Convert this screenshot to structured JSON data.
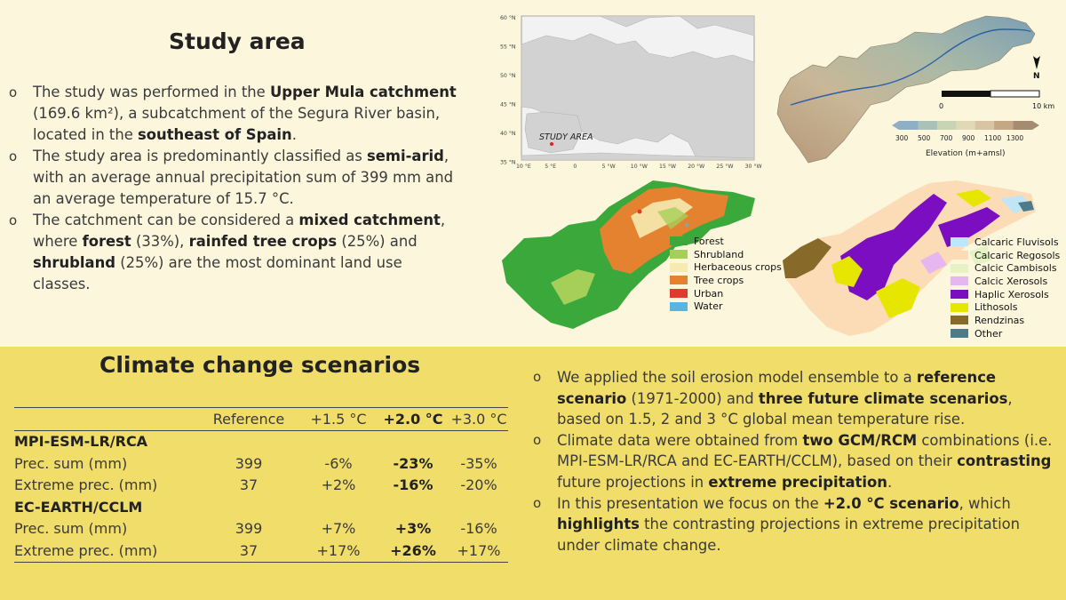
{
  "study_area": {
    "title": "Study area",
    "bullets": [
      [
        {
          "t": "The study was performed in the "
        },
        {
          "t": "Upper Mula catchment",
          "b": true
        },
        {
          "t": " (169.6 km²), a subcatchment of the Segura River basin, located in the "
        },
        {
          "t": "southeast of Spain",
          "b": true
        },
        {
          "t": "."
        }
      ],
      [
        {
          "t": "The study area is predominantly classified as "
        },
        {
          "t": "semi-arid",
          "b": true
        },
        {
          "t": ", with an average annual precipitation sum of 399 mm and an average temperature of 15.7 °C."
        }
      ],
      [
        {
          "t": "The catchment can be considered a "
        },
        {
          "t": "mixed catchment",
          "b": true
        },
        {
          "t": ", where "
        },
        {
          "t": "forest",
          "b": true
        },
        {
          "t": " (33%), "
        },
        {
          "t": "rainfed tree crops",
          "b": true
        },
        {
          "t": " (25%) and "
        },
        {
          "t": "shrubland",
          "b": true
        },
        {
          "t": " (25%) are the most dominant land use classes."
        }
      ]
    ]
  },
  "climate": {
    "title": "Climate change scenarios",
    "bullets": [
      [
        {
          "t": "We applied the soil erosion model ensemble to a "
        },
        {
          "t": "reference scenario",
          "b": true
        },
        {
          "t": " (1971-2000) and "
        },
        {
          "t": "three future climate scenarios",
          "b": true
        },
        {
          "t": ", based on 1.5, 2 and 3 °C global mean temperature rise."
        }
      ],
      [
        {
          "t": "Climate data were obtained from "
        },
        {
          "t": "two GCM/RCM",
          "b": true
        },
        {
          "t": " combinations (i.e. MPI-ESM-LR/RCA and EC-EARTH/CCLM), based on their "
        },
        {
          "t": "contrasting",
          "b": true
        },
        {
          "t": " future projections in "
        },
        {
          "t": "extreme precipitation",
          "b": true
        },
        {
          "t": "."
        }
      ],
      [
        {
          "t": "In this presentation we focus on the "
        },
        {
          "t": "+2.0 °C scenario",
          "b": true
        },
        {
          "t": ", which "
        },
        {
          "t": "highlights",
          "b": true
        },
        {
          "t": " the contrasting projections in extreme precipitation under climate change."
        }
      ]
    ]
  },
  "table": {
    "headers": [
      "",
      "Reference",
      "+1.5 °C",
      "+2.0 °C",
      "+3.0 °C"
    ],
    "groups": [
      {
        "name": "MPI-ESM-LR/RCA",
        "rows": [
          [
            "Prec. sum (mm)",
            "399",
            "-6%",
            "-23%",
            "-35%"
          ],
          [
            "Extreme prec. (mm)",
            "37",
            "+2%",
            "-16%",
            "-20%"
          ]
        ]
      },
      {
        "name": "EC-EARTH/CCLM",
        "rows": [
          [
            "Prec. sum (mm)",
            "399",
            "+7%",
            "+3%",
            "-16%"
          ],
          [
            "Extreme prec. (mm)",
            "37",
            "+17%",
            "+26%",
            "+17%"
          ]
        ]
      }
    ]
  },
  "europe_map": {
    "lat_labels": [
      "60 °N",
      "55 °N",
      "50 °N",
      "45 °N",
      "40 °N",
      "35 °N"
    ],
    "lon_labels": [
      "10 °E",
      "5 °E",
      "0",
      "5 °W",
      "10 °W",
      "15 °W",
      "20 °W",
      "25 °W",
      "30 °W"
    ],
    "marker_label": "STUDY AREA"
  },
  "dem_map": {
    "scale_labels": [
      "0",
      "10 km"
    ],
    "north": "N",
    "elev_ticks": [
      "300",
      "500",
      "700",
      "900",
      "1100",
      "1300"
    ],
    "elev_title": "Elevation (m+amsl)",
    "elev_colors": [
      "#8fb0c4",
      "#a9c2b8",
      "#c9d4b4",
      "#e0d9b6",
      "#d8c4a2",
      "#c4a886",
      "#a58b70"
    ]
  },
  "landuse_legend": [
    {
      "label": "Forest",
      "color": "#3aa83a"
    },
    {
      "label": "Shrubland",
      "color": "#a6cf5a"
    },
    {
      "label": "Herbaceous crops",
      "color": "#f6eab0"
    },
    {
      "label": "Tree crops",
      "color": "#e58230"
    },
    {
      "label": "Urban",
      "color": "#e23a2a"
    },
    {
      "label": "Water",
      "color": "#58b4e0"
    }
  ],
  "soil_legend": [
    {
      "label": "Calcaric Fluvisols",
      "color": "#bfe6f6"
    },
    {
      "label": "Calcaric Regosols",
      "color": "#fbdcb6"
    },
    {
      "label": "Calcic Cambisols",
      "color": "#e4f2c4"
    },
    {
      "label": "Calcic Xerosols",
      "color": "#e6b6f0"
    },
    {
      "label": "Haplic Xerosols",
      "color": "#7b0ec0"
    },
    {
      "label": "Lithosols",
      "color": "#e6e600"
    },
    {
      "label": "Rendzinas",
      "color": "#876a2a"
    },
    {
      "label": "Other",
      "color": "#4e7a8a"
    }
  ]
}
